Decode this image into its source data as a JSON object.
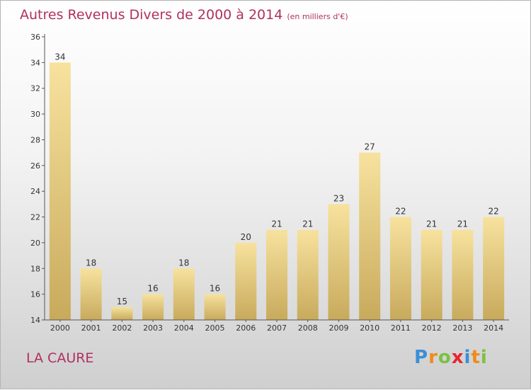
{
  "title": "Autres Revenus Divers de 2000 à 2014",
  "unit": "(en milliers d'€)",
  "commune": "LA CAURE",
  "logo": {
    "text": "Proxiti",
    "letters": [
      {
        "ch": "P",
        "color": "#3a8fd6"
      },
      {
        "ch": "r",
        "color": "#f08a1c"
      },
      {
        "ch": "o",
        "color": "#7cc142"
      },
      {
        "ch": "x",
        "color": "#e8262f"
      },
      {
        "ch": "i",
        "color": "#3a8fd6"
      },
      {
        "ch": "t",
        "color": "#f08a1c"
      },
      {
        "ch": "i",
        "color": "#7cc142"
      }
    ]
  },
  "colors": {
    "title": "#b03060",
    "bar_top": "#f7e29e",
    "bar_bottom": "#c8aa5c",
    "axis": "#555555"
  },
  "chart_data": {
    "type": "bar",
    "categories": [
      "2000",
      "2001",
      "2002",
      "2003",
      "2004",
      "2005",
      "2006",
      "2007",
      "2008",
      "2009",
      "2010",
      "2011",
      "2012",
      "2013",
      "2014"
    ],
    "values": [
      34,
      18,
      15,
      16,
      18,
      16,
      20,
      21,
      21,
      23,
      27,
      22,
      21,
      21,
      22
    ],
    "ylim": [
      14,
      36
    ],
    "yticks": [
      14,
      16,
      18,
      20,
      22,
      24,
      26,
      28,
      30,
      32,
      34,
      36
    ],
    "grid": false,
    "legend": "none"
  }
}
